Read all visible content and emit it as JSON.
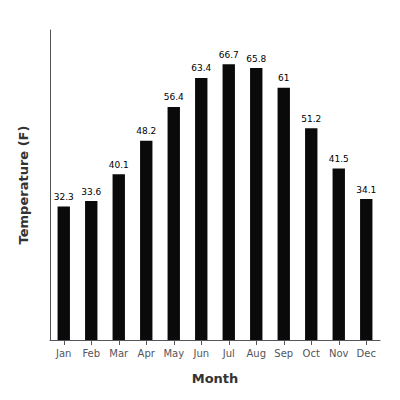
{
  "chart_data": {
    "type": "bar",
    "categories": [
      "Jan",
      "Feb",
      "Mar",
      "Apr",
      "May",
      "Jun",
      "Jul",
      "Aug",
      "Sep",
      "Oct",
      "Nov",
      "Dec"
    ],
    "values": [
      32.3,
      33.6,
      40.1,
      48.2,
      56.4,
      63.4,
      66.7,
      65.8,
      61.0,
      51.2,
      41.5,
      34.1
    ],
    "color": "#0a0a0a",
    "xlabel": "Month",
    "ylabel": "Temperature (F)",
    "ylim": [
      0,
      75
    ],
    "grid": false,
    "data_labels": true,
    "tick_labels": "x"
  }
}
